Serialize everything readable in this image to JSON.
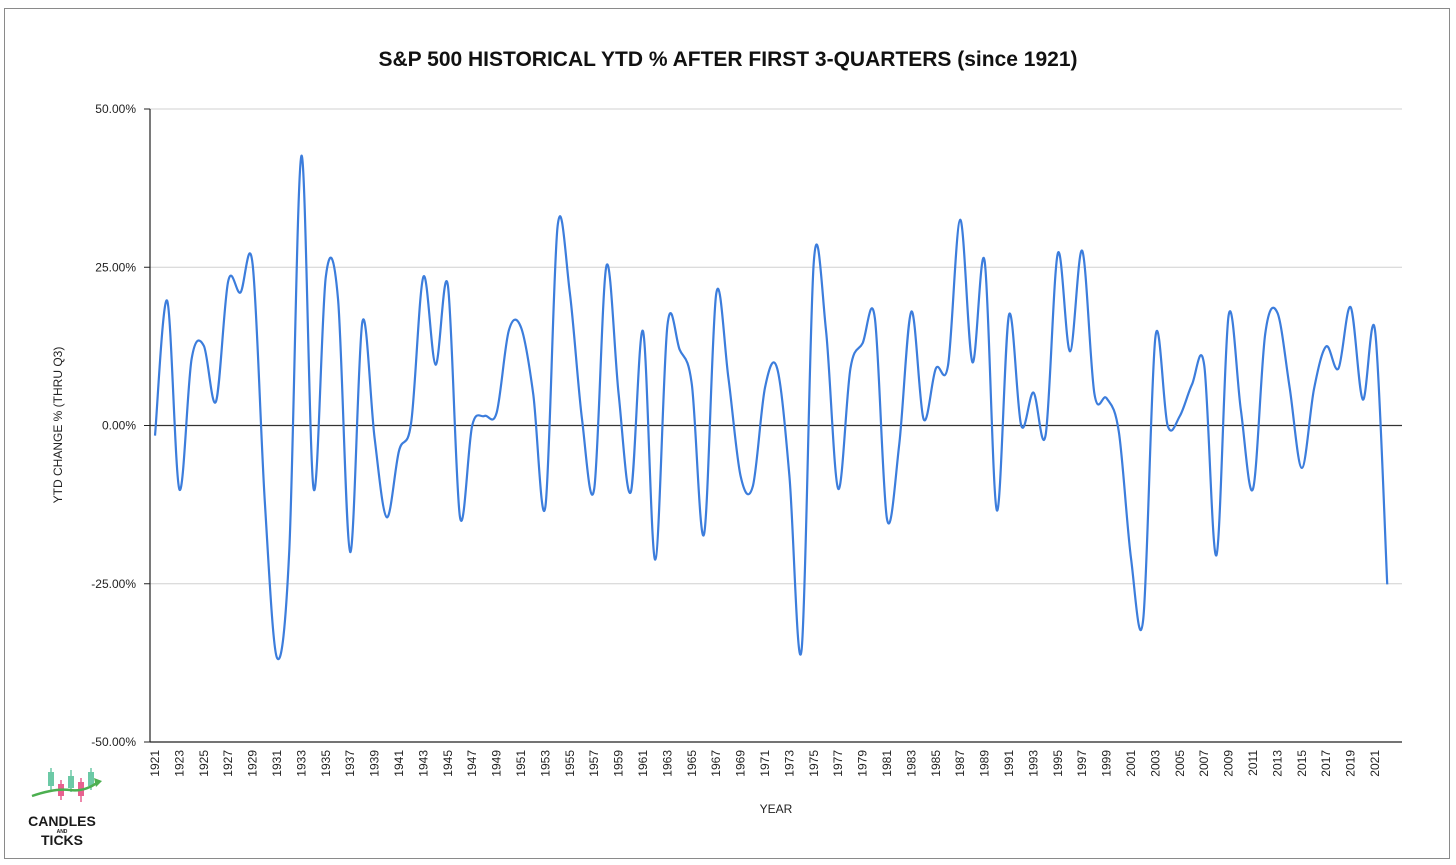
{
  "chart_data": {
    "type": "line",
    "title": "S&P 500 HISTORICAL YTD % AFTER FIRST 3-QUARTERS (since 1921)",
    "xlabel": "YEAR",
    "ylabel": "YTD CHANGE % (THRU Q3)",
    "ylim": [
      -50,
      50
    ],
    "y_ticks": [
      "50.00%",
      "25.00%",
      "0.00%",
      "-25.00%",
      "-50.00%"
    ],
    "y_tick_values": [
      50,
      25,
      0,
      -25,
      -50
    ],
    "x_tick_labels": [
      "1921",
      "1923",
      "1925",
      "1927",
      "1929",
      "1931",
      "1933",
      "1935",
      "1937",
      "1939",
      "1941",
      "1943",
      "1945",
      "1947",
      "1949",
      "1951",
      "1953",
      "1955",
      "1957",
      "1959",
      "1961",
      "1963",
      "1965",
      "1967",
      "1969",
      "1971",
      "1973",
      "1975",
      "1977",
      "1979",
      "1981",
      "1983",
      "1985",
      "1987",
      "1989",
      "1991",
      "1993",
      "1995",
      "1997",
      "1999",
      "2001",
      "2003",
      "2005",
      "2007",
      "2009",
      "2011",
      "2013",
      "2015",
      "2017",
      "2019",
      "2021"
    ],
    "grid": true,
    "line_color": "#3c7ddc",
    "series": [
      {
        "x": [
          1921,
          1922,
          1923,
          1924,
          1925,
          1926,
          1927,
          1928,
          1929,
          1930,
          1931,
          1932,
          1933,
          1934,
          1935,
          1936,
          1937,
          1938,
          1939,
          1940,
          1941,
          1942,
          1943,
          1944,
          1945,
          1946,
          1947,
          1948,
          1949,
          1950,
          1951,
          1952,
          1953,
          1954,
          1955,
          1956,
          1957,
          1958,
          1959,
          1960,
          1961,
          1962,
          1963,
          1964,
          1965,
          1966,
          1967,
          1968,
          1969,
          1970,
          1971,
          1972,
          1973,
          1974,
          1975,
          1976,
          1977,
          1978,
          1979,
          1980,
          1981,
          1982,
          1983,
          1984,
          1985,
          1986,
          1987,
          1988,
          1989,
          1990,
          1991,
          1992,
          1993,
          1994,
          1995,
          1996,
          1997,
          1998,
          1999,
          2000,
          2001,
          2002,
          2003,
          2004,
          2005,
          2006,
          2007,
          2008,
          2009,
          2010,
          2011,
          2012,
          2013,
          2014,
          2015,
          2016,
          2017,
          2018,
          2019,
          2020,
          2021,
          2022
        ],
        "values": [
          -1.6,
          19.7,
          -10.1,
          10.5,
          12.6,
          3.8,
          22.8,
          21.0,
          25.5,
          -12.0,
          -36.7,
          -20.0,
          42.6,
          -10.0,
          23.5,
          20.0,
          -20.0,
          16.4,
          -2.0,
          -14.5,
          -4.0,
          0.5,
          23.5,
          9.6,
          22.2,
          -14.5,
          0.0,
          1.5,
          2.0,
          15.0,
          15.5,
          5.0,
          -12.8,
          31.5,
          21.0,
          1.0,
          -10.0,
          25.2,
          5.0,
          -10.5,
          14.9,
          -21.2,
          15.8,
          12.0,
          6.5,
          -17.2,
          20.8,
          7.5,
          -8.0,
          -9.6,
          6.0,
          9.0,
          -8.0,
          -35.4,
          25.9,
          15.0,
          -10.0,
          9.0,
          13.0,
          17.0,
          -14.8,
          -3.0,
          18.0,
          1.0,
          9.0,
          9.5,
          32.5,
          10.0,
          26.0,
          -13.4,
          17.5,
          0.0,
          5.2,
          -1.5,
          27.2,
          11.7,
          27.6,
          5.0,
          4.3,
          -1.0,
          -21.0,
          -30.6,
          14.0,
          0.0,
          1.5,
          6.5,
          9.5,
          -20.5,
          17.4,
          2.5,
          -10.0,
          14.5,
          17.8,
          6.0,
          -6.7,
          5.8,
          12.5,
          9.0,
          18.7,
          4.1,
          15.0,
          -25.1
        ]
      }
    ]
  },
  "logo": {
    "text_top": "CANDLES",
    "text_mid": "AND",
    "text_bottom": "TICKS"
  }
}
